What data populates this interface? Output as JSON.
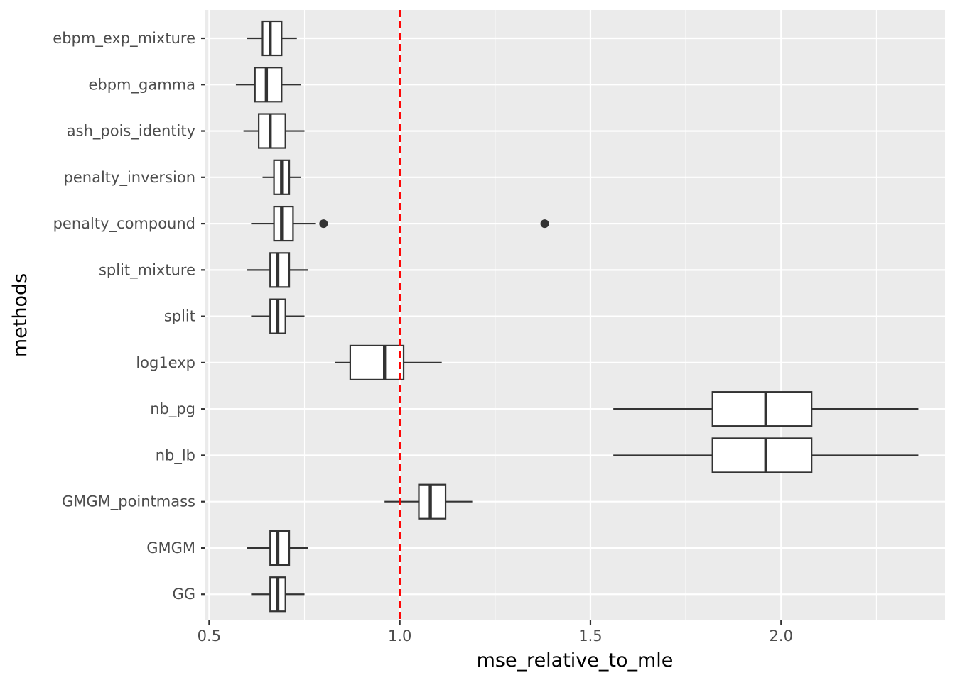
{
  "chart_data": {
    "type": "boxplot",
    "orientation": "horizontal",
    "title": "",
    "xlabel": "mse_relative_to_mle",
    "ylabel": "methods",
    "xlim": [
      0.49,
      2.43
    ],
    "x_ticks": [
      0.5,
      1.0,
      1.5,
      2.0
    ],
    "x_tick_labels": [
      "0.5",
      "1.0",
      "1.5",
      "2.0"
    ],
    "grid": true,
    "reference_line": {
      "x": 1.0,
      "style": "dashed",
      "color": "#ff0000"
    },
    "categories": [
      "ebpm_exp_mixture",
      "ebpm_gamma",
      "ash_pois_identity",
      "penalty_inversion",
      "penalty_compound",
      "split_mixture",
      "split",
      "log1exp",
      "nb_pg",
      "nb_lb",
      "GMGM_pointmass",
      "GMGM",
      "GG"
    ],
    "boxes": [
      {
        "method": "ebpm_exp_mixture",
        "whisker_low": 0.6,
        "q1": 0.64,
        "median": 0.66,
        "q3": 0.69,
        "whisker_high": 0.73,
        "outliers": []
      },
      {
        "method": "ebpm_gamma",
        "whisker_low": 0.57,
        "q1": 0.62,
        "median": 0.65,
        "q3": 0.69,
        "whisker_high": 0.74,
        "outliers": []
      },
      {
        "method": "ash_pois_identity",
        "whisker_low": 0.59,
        "q1": 0.63,
        "median": 0.66,
        "q3": 0.7,
        "whisker_high": 0.75,
        "outliers": []
      },
      {
        "method": "penalty_inversion",
        "whisker_low": 0.64,
        "q1": 0.67,
        "median": 0.69,
        "q3": 0.71,
        "whisker_high": 0.74,
        "outliers": []
      },
      {
        "method": "penalty_compound",
        "whisker_low": 0.61,
        "q1": 0.67,
        "median": 0.69,
        "q3": 0.72,
        "whisker_high": 0.78,
        "outliers": [
          0.8,
          1.38
        ]
      },
      {
        "method": "split_mixture",
        "whisker_low": 0.6,
        "q1": 0.66,
        "median": 0.68,
        "q3": 0.71,
        "whisker_high": 0.76,
        "outliers": []
      },
      {
        "method": "split",
        "whisker_low": 0.61,
        "q1": 0.66,
        "median": 0.68,
        "q3": 0.7,
        "whisker_high": 0.75,
        "outliers": []
      },
      {
        "method": "log1exp",
        "whisker_low": 0.83,
        "q1": 0.87,
        "median": 0.96,
        "q3": 1.01,
        "whisker_high": 1.11,
        "outliers": []
      },
      {
        "method": "nb_pg",
        "whisker_low": 1.56,
        "q1": 1.82,
        "median": 1.96,
        "q3": 2.08,
        "whisker_high": 2.36,
        "outliers": []
      },
      {
        "method": "nb_lb",
        "whisker_low": 1.56,
        "q1": 1.82,
        "median": 1.96,
        "q3": 2.08,
        "whisker_high": 2.36,
        "outliers": []
      },
      {
        "method": "GMGM_pointmass",
        "whisker_low": 0.96,
        "q1": 1.05,
        "median": 1.08,
        "q3": 1.12,
        "whisker_high": 1.19,
        "outliers": []
      },
      {
        "method": "GMGM",
        "whisker_low": 0.6,
        "q1": 0.66,
        "median": 0.68,
        "q3": 0.71,
        "whisker_high": 0.76,
        "outliers": []
      },
      {
        "method": "GG",
        "whisker_low": 0.61,
        "q1": 0.66,
        "median": 0.68,
        "q3": 0.7,
        "whisker_high": 0.75,
        "outliers": []
      }
    ],
    "colors": {
      "panel_background": "#ebebeb",
      "grid_major": "#ffffff",
      "box_fill": "#ffffff",
      "box_stroke": "#333333",
      "outlier": "#333333",
      "reference_line": "#ff0000"
    }
  }
}
